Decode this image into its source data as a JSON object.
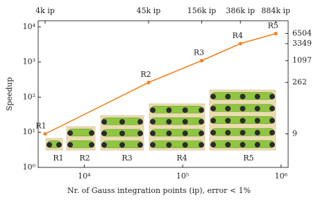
{
  "chart_data": {
    "type": "line",
    "xlabel": "Nr. of Gauss integration points (ip), error < 1%",
    "ylabel": "Speedup",
    "xscale": "log",
    "yscale": "log",
    "xlim": [
      3400,
      1180000
    ],
    "ylim": [
      1,
      15000
    ],
    "y2lim": [
      1,
      15000
    ],
    "xticks": [
      {
        "value": 10000,
        "label": "10⁴"
      },
      {
        "value": 100000,
        "label": "10⁵"
      },
      {
        "value": 1000000,
        "label": "10⁶"
      }
    ],
    "yticks": [
      {
        "value": 1,
        "label": "10⁰"
      },
      {
        "value": 10,
        "label": "10¹"
      },
      {
        "value": 100,
        "label": "10²"
      },
      {
        "value": 1000,
        "label": "10³"
      },
      {
        "value": 10000,
        "label": "10⁴"
      }
    ],
    "x2ticks": [
      {
        "value": 4000,
        "label": "4k ip"
      },
      {
        "value": 45000,
        "label": "45k ip"
      },
      {
        "value": 156000,
        "label": "156k ip"
      },
      {
        "value": 386000,
        "label": "386k ip"
      },
      {
        "value": 884000,
        "label": "884k ip"
      }
    ],
    "y2ticks": [
      9,
      262,
      1097,
      3349,
      6504
    ],
    "series": [
      {
        "color": "#f5811f",
        "x": [
          4000,
          45000,
          156000,
          386000,
          884000
        ],
        "values": [
          9,
          262,
          1097,
          3349,
          6504
        ],
        "point_labels": [
          "R1",
          "R2",
          "R3",
          "R4",
          "R5"
        ]
      }
    ],
    "image_labels": [
      "R1",
      "R2",
      "R3",
      "R4",
      "R5"
    ]
  }
}
